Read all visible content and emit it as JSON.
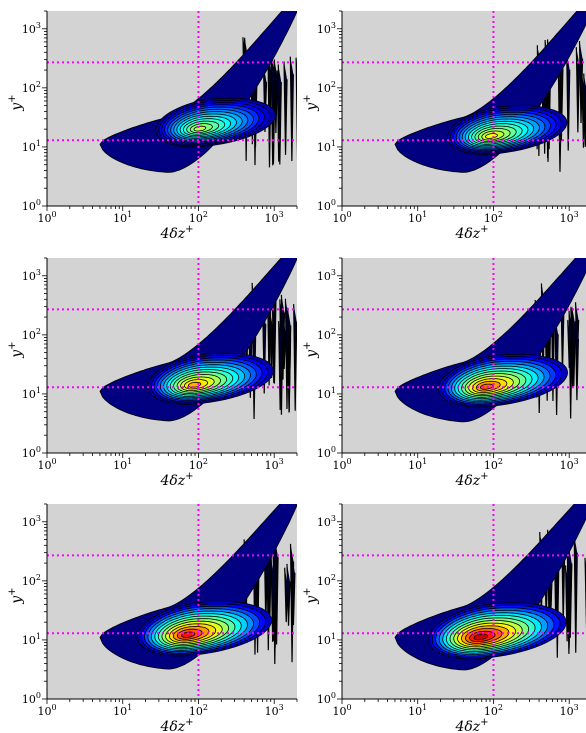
{
  "chart_data": [
    {
      "type": "contour",
      "panel": "row1-left",
      "peak": [
        100,
        20
      ],
      "intensity": 0.55,
      "spread": 1.0
    },
    {
      "type": "contour",
      "panel": "row1-right",
      "peak": [
        90,
        15
      ],
      "intensity": 0.62,
      "spread": 1.0
    },
    {
      "type": "contour",
      "panel": "row2-left",
      "peak": [
        85,
        14
      ],
      "intensity": 0.7,
      "spread": 1.05
    },
    {
      "type": "contour",
      "panel": "row2-right",
      "peak": [
        78,
        13
      ],
      "intensity": 0.78,
      "spread": 1.08
    },
    {
      "type": "contour",
      "panel": "row3-left",
      "peak": [
        70,
        12
      ],
      "intensity": 0.86,
      "spread": 1.12
    },
    {
      "type": "contour",
      "panel": "row3-right",
      "peak": [
        65,
        11
      ],
      "intensity": 0.92,
      "spread": 1.15
    }
  ],
  "axes": {
    "xlabel": "4δz",
    "xlabel_sup": "+",
    "ylabel": "y",
    "ylabel_sup": "+",
    "x_ticks": [
      {
        "base": "10",
        "exp": "0",
        "value": 1
      },
      {
        "base": "10",
        "exp": "1",
        "value": 10
      },
      {
        "base": "10",
        "exp": "2",
        "value": 100
      },
      {
        "base": "10",
        "exp": "3",
        "value": 1000
      }
    ],
    "y_ticks": [
      {
        "base": "10",
        "exp": "0",
        "value": 1
      },
      {
        "base": "10",
        "exp": "1",
        "value": 10
      },
      {
        "base": "10",
        "exp": "2",
        "value": 100
      },
      {
        "base": "10",
        "exp": "3",
        "value": 1000
      }
    ],
    "xlim": [
      1,
      2000
    ],
    "ylim": [
      1,
      2000
    ],
    "scale": "log",
    "guide_lines": {
      "x": 100,
      "y": [
        13,
        270
      ],
      "color": "#ff00ff"
    },
    "background": "#d3d3d3"
  }
}
